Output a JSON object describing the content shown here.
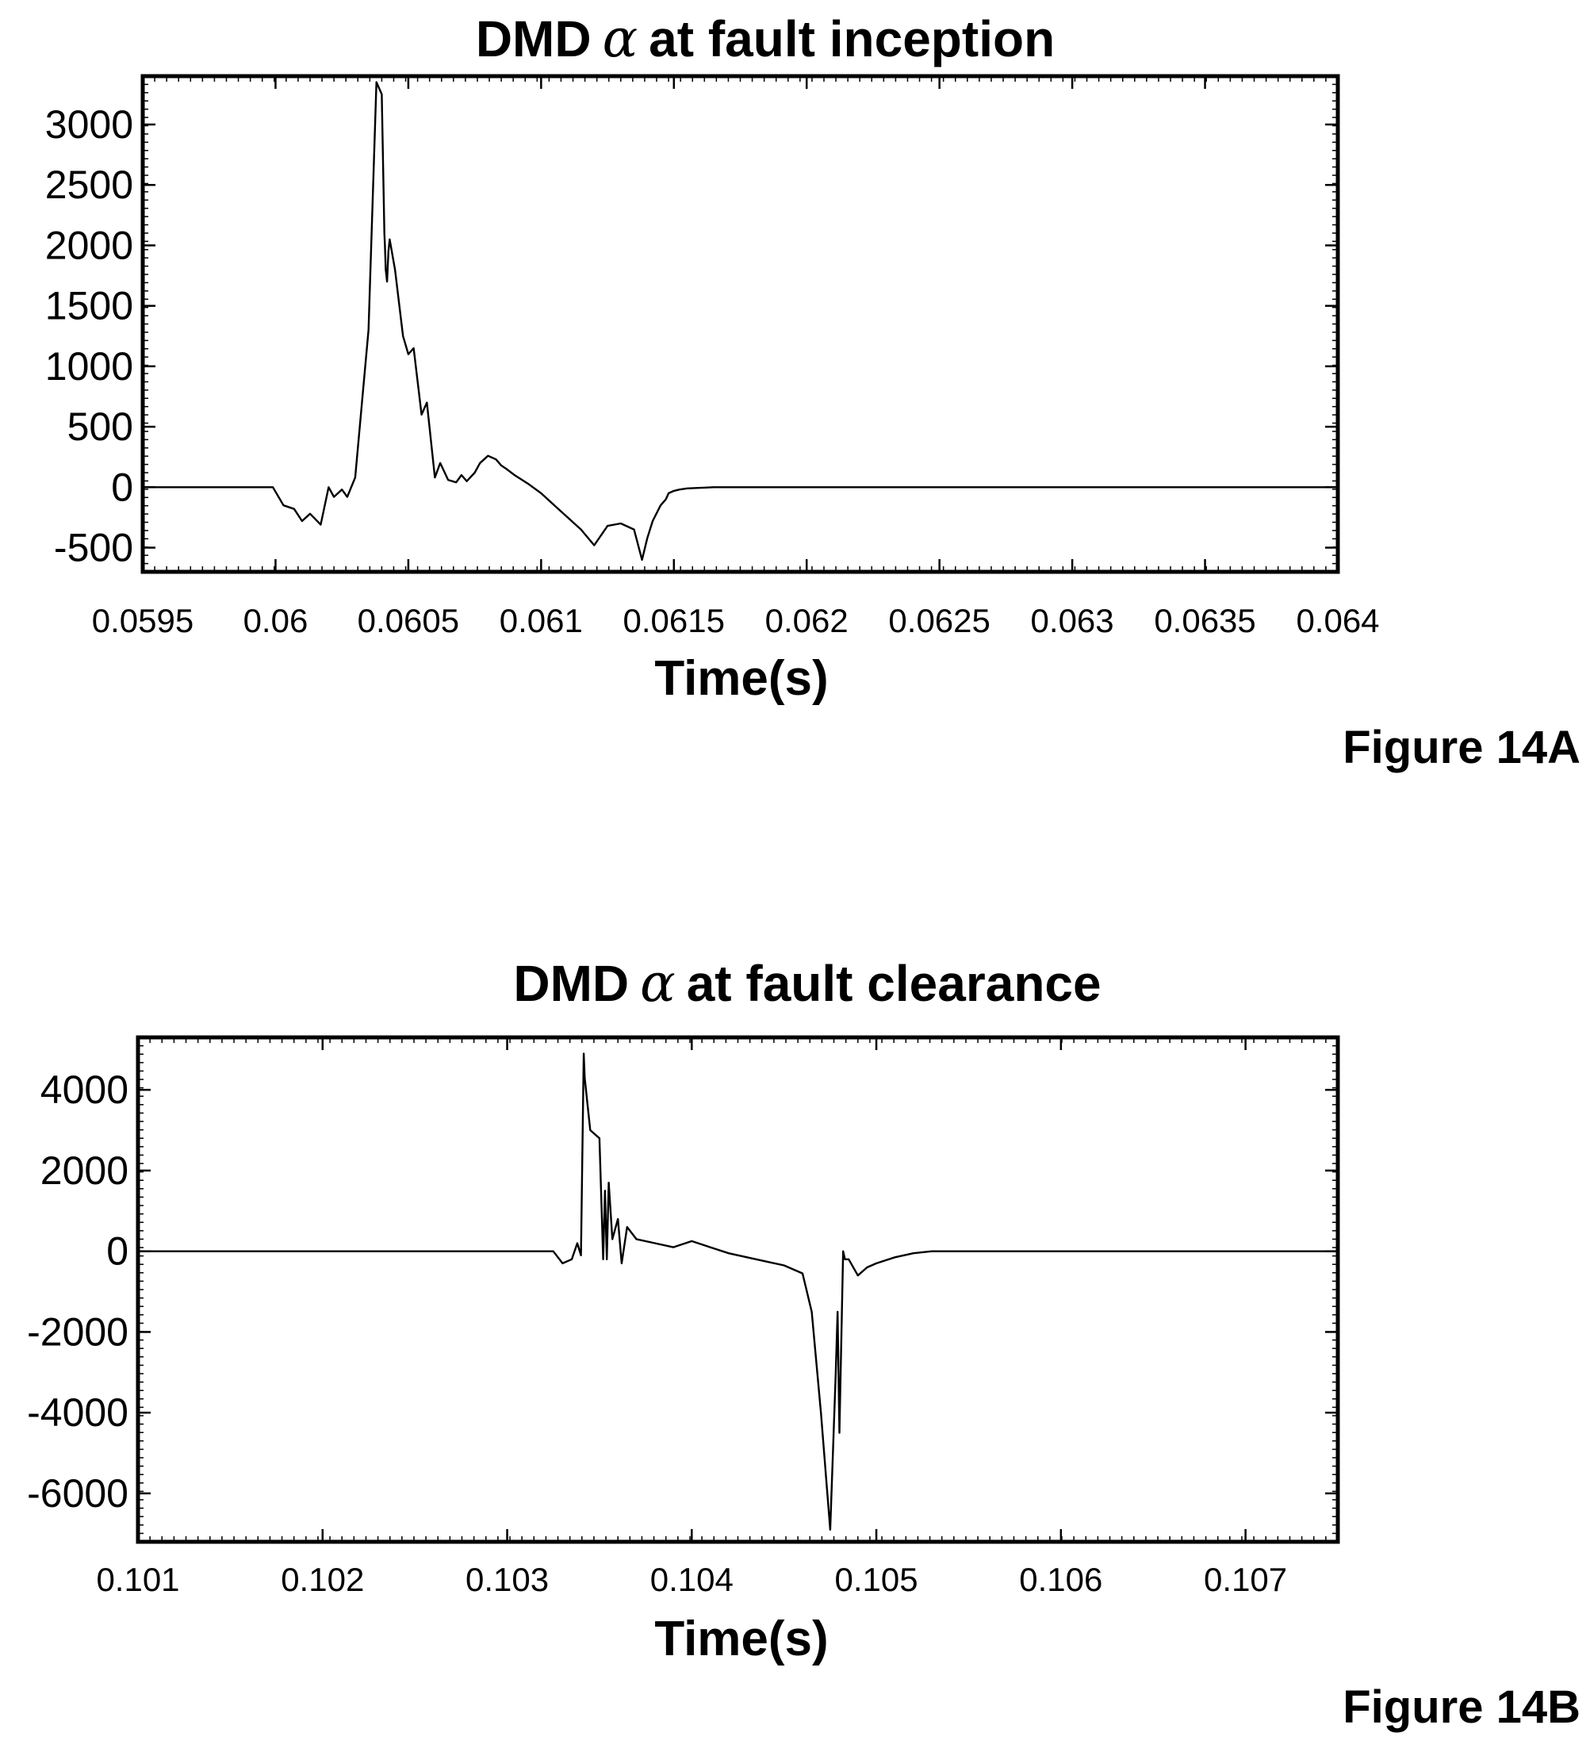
{
  "chart_data": [
    {
      "type": "line",
      "title_prefix": "DMD",
      "title_symbol": "α",
      "title_suffix": "at fault inception",
      "xlabel": "Time(s)",
      "ylabel": "",
      "figure_label": "Figure 14A",
      "xlim": [
        0.0595,
        0.064
      ],
      "ylim": [
        -700,
        3400
      ],
      "x_ticks": [
        0.0595,
        0.06,
        0.0605,
        0.061,
        0.0615,
        0.062,
        0.0625,
        0.063,
        0.0635,
        0.064
      ],
      "x_tick_labels": [
        "0.0595",
        "0.06",
        "0.0605",
        "0.061",
        "0.0615",
        "0.062",
        "0.0625",
        "0.063",
        "0.0635",
        "0.064"
      ],
      "y_ticks": [
        -500,
        0,
        500,
        1000,
        1500,
        2000,
        2500,
        3000
      ],
      "y_tick_labels": [
        "-500",
        "0",
        "500",
        "1000",
        "1500",
        "2000",
        "2500",
        "3000"
      ],
      "grid": false,
      "series": [
        {
          "x": [
            0.0595,
            0.05999,
            0.06003,
            0.06007,
            0.0601,
            0.06013,
            0.06017,
            0.0602,
            0.06022,
            0.06025,
            0.06027,
            0.0603,
            0.06035,
            0.06038,
            0.0604,
            0.06041,
            0.060412,
            0.060415,
            0.06042,
            0.060425,
            0.06043,
            0.06045,
            0.06048,
            0.0605,
            0.06052,
            0.06055,
            0.06057,
            0.0606,
            0.06062,
            0.06065,
            0.06068,
            0.0607,
            0.06072,
            0.06075,
            0.06077,
            0.0608,
            0.06083,
            0.06085,
            0.06087,
            0.0609,
            0.06095,
            0.061,
            0.06105,
            0.0611,
            0.06115,
            0.0612,
            0.06125,
            0.0613,
            0.06135,
            0.06138,
            0.0614,
            0.06142,
            0.06145,
            0.06147,
            0.06148,
            0.0615,
            0.06152,
            0.06155,
            0.0616,
            0.06165,
            0.0617,
            0.06175,
            0.0618,
            0.0619,
            0.062,
            0.0621,
            0.0622,
            0.0623,
            0.0624,
            0.0625,
            0.0626,
            0.0628,
            0.063,
            0.0635,
            0.064
          ],
          "y": [
            0,
            0,
            -150,
            -180,
            -280,
            -220,
            -310,
            0,
            -80,
            -20,
            -80,
            80,
            1300,
            3350,
            3250,
            2100,
            2000,
            1800,
            1700,
            1950,
            2050,
            1800,
            1250,
            1100,
            1150,
            600,
            700,
            80,
            200,
            60,
            40,
            100,
            50,
            120,
            200,
            260,
            230,
            180,
            150,
            100,
            30,
            -50,
            -150,
            -250,
            -350,
            -480,
            -320,
            -300,
            -350,
            -600,
            -420,
            -280,
            -150,
            -100,
            -50,
            -30,
            -20,
            -10,
            -5,
            0,
            0,
            0,
            0,
            0,
            0,
            0,
            0,
            0,
            0,
            0,
            0,
            0,
            0,
            0,
            0
          ]
        }
      ]
    },
    {
      "type": "line",
      "title_prefix": "DMD",
      "title_symbol": "α",
      "title_suffix": "at fault clearance",
      "xlabel": "Time(s)",
      "ylabel": "",
      "figure_label": "Figure 14B",
      "xlim": [
        0.101,
        0.1075
      ],
      "ylim": [
        -7200,
        5300
      ],
      "x_ticks": [
        0.101,
        0.102,
        0.103,
        0.104,
        0.105,
        0.106,
        0.107
      ],
      "x_tick_labels": [
        "0.101",
        "0.102",
        "0.103",
        "0.104",
        "0.105",
        "0.106",
        "0.107"
      ],
      "y_ticks": [
        -6000,
        -4000,
        -2000,
        0,
        2000,
        4000
      ],
      "y_tick_labels": [
        "-6000",
        "-4000",
        "-2000",
        "0",
        "2000",
        "4000"
      ],
      "grid": false,
      "series": [
        {
          "x": [
            0.101,
            0.10325,
            0.1033,
            0.10335,
            0.10338,
            0.1034,
            0.103415,
            0.10342,
            0.10345,
            0.1035,
            0.10352,
            0.10353,
            0.10354,
            0.10355,
            0.10357,
            0.1036,
            0.10362,
            0.10365,
            0.1037,
            0.1038,
            0.1039,
            0.104,
            0.1041,
            0.1042,
            0.1043,
            0.1044,
            0.1045,
            0.1046,
            0.10465,
            0.1047,
            0.10475,
            0.10478,
            0.10479,
            0.1048,
            0.10482,
            0.10483,
            0.10485,
            0.1049,
            0.10495,
            0.105,
            0.1051,
            0.1052,
            0.1053,
            0.1055,
            0.106,
            0.107,
            0.1075
          ],
          "y": [
            0,
            0,
            -300,
            -200,
            200,
            -100,
            4900,
            4300,
            3000,
            2800,
            -200,
            1500,
            -200,
            1700,
            300,
            800,
            -300,
            600,
            300,
            200,
            100,
            250,
            100,
            -50,
            -150,
            -250,
            -350,
            -550,
            -1500,
            -4000,
            -6900,
            -3000,
            -1500,
            -4500,
            0,
            -200,
            -200,
            -600,
            -400,
            -300,
            -150,
            -50,
            0,
            0,
            0,
            0,
            0
          ]
        }
      ]
    }
  ]
}
